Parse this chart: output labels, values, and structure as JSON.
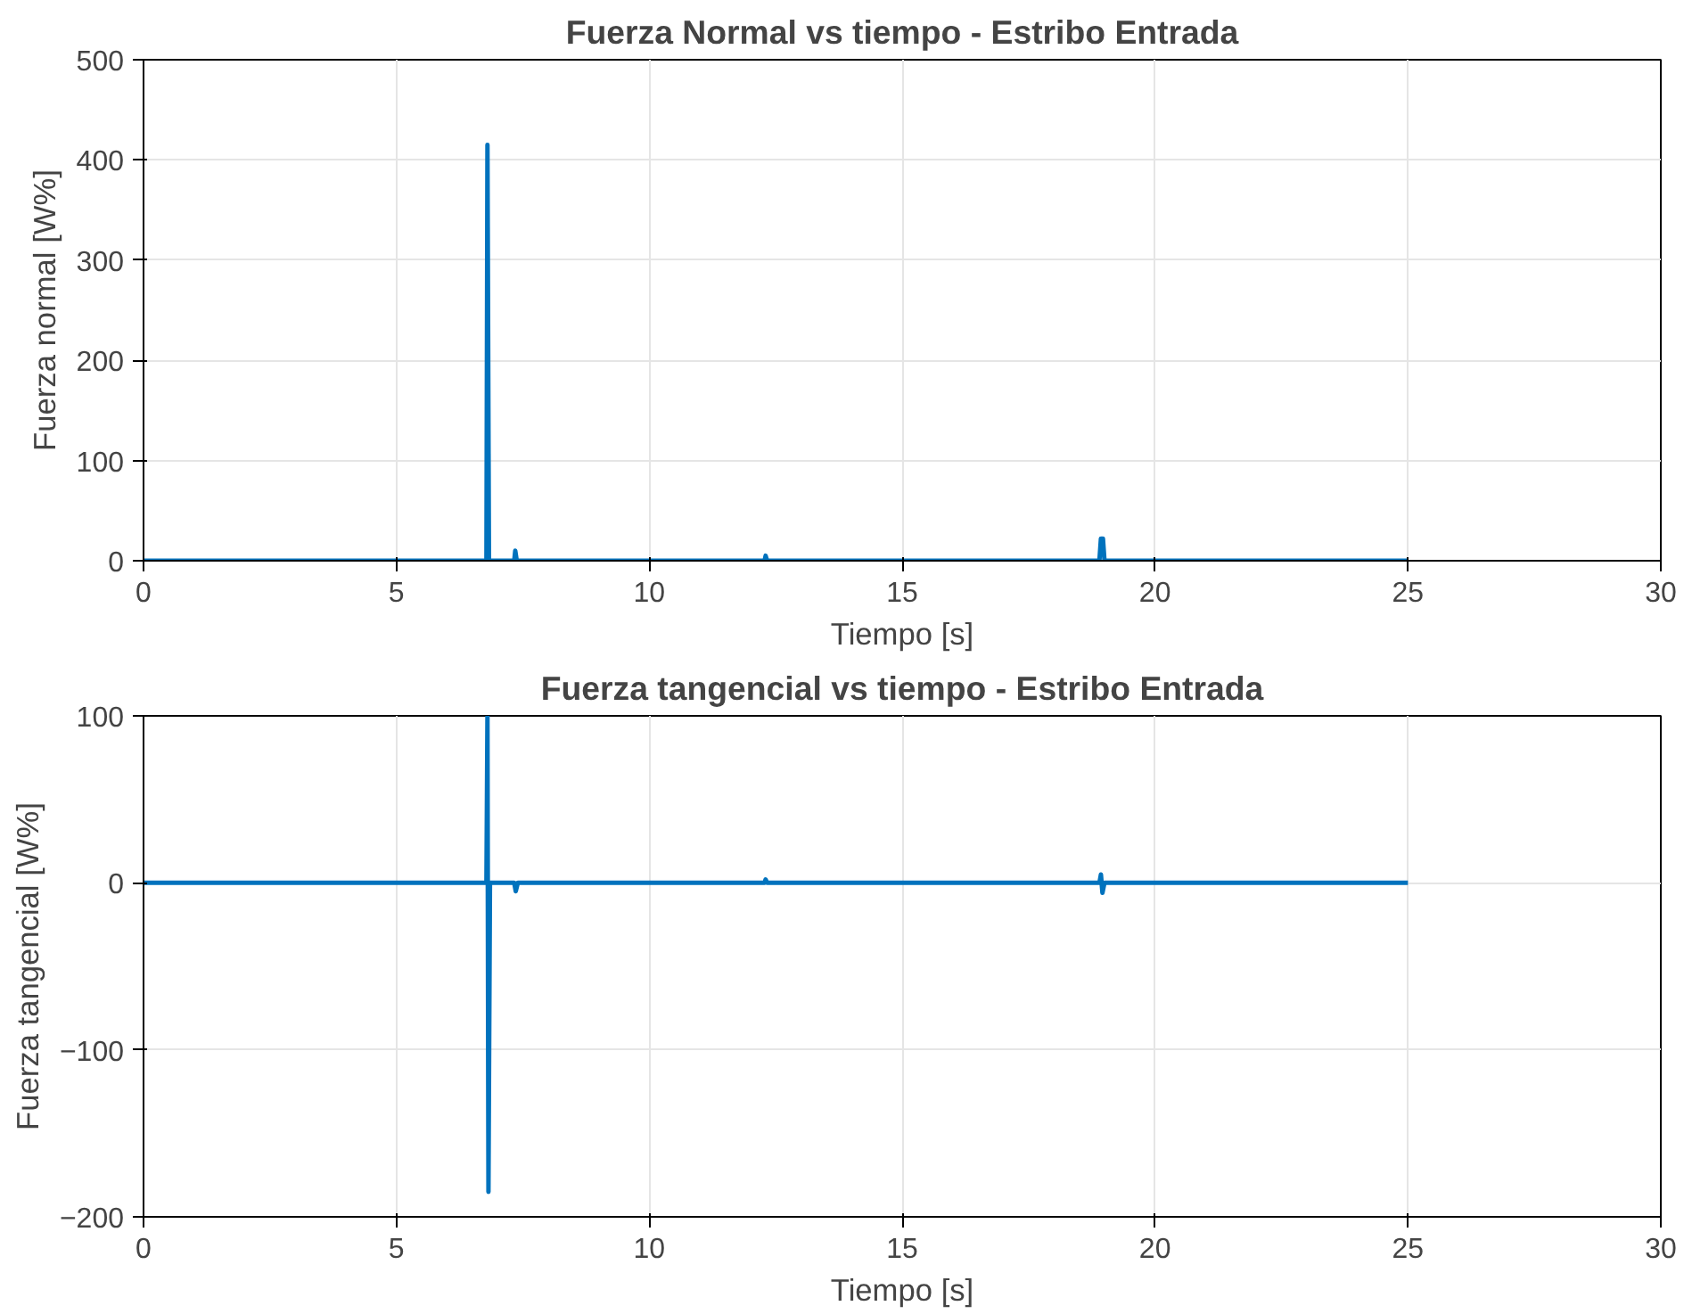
{
  "chart_data": [
    {
      "type": "line",
      "title": "Fuerza Normal vs tiempo - Estribo Entrada",
      "xlabel": "Tiempo [s]",
      "ylabel": "Fuerza normal [W%]",
      "x": [
        0,
        6.78,
        6.8,
        6.83,
        7.33,
        7.35,
        7.38,
        12.28,
        12.3,
        12.33,
        18.9,
        18.93,
        18.97,
        19.0,
        25
      ],
      "series": [
        {
          "color": "#0072bd",
          "values": [
            0,
            0,
            415,
            0,
            0,
            10,
            0,
            0,
            5,
            0,
            0,
            22,
            22,
            0,
            0
          ]
        }
      ],
      "xlim": [
        0,
        30
      ],
      "xticks": [
        0,
        5,
        10,
        15,
        20,
        25,
        30
      ],
      "ylim": [
        0,
        500
      ],
      "yticks": [
        0,
        100,
        200,
        300,
        400,
        500
      ],
      "grid": true,
      "line_style": "solid"
    },
    {
      "type": "line",
      "title": "Fuerza tangencial vs tiempo - Estribo Entrada",
      "xlabel": "Tiempo [s]",
      "ylabel": "Fuerza tangencial [W%]",
      "x": [
        0,
        6.78,
        6.8,
        6.82,
        6.85,
        7.33,
        7.36,
        7.4,
        12.28,
        12.3,
        12.33,
        18.9,
        18.93,
        18.96,
        19.0,
        25
      ],
      "series": [
        {
          "color": "#0072bd",
          "values": [
            0,
            0,
            100,
            -185,
            0,
            0,
            -5,
            0,
            0,
            2,
            0,
            0,
            5,
            -6,
            0,
            0
          ]
        }
      ],
      "xlim": [
        0,
        30
      ],
      "xticks": [
        0,
        5,
        10,
        15,
        20,
        25,
        30
      ],
      "ylim": [
        -200,
        100
      ],
      "yticks": [
        -200,
        -100,
        0,
        100
      ],
      "grid": true,
      "line_style": "solid"
    }
  ]
}
